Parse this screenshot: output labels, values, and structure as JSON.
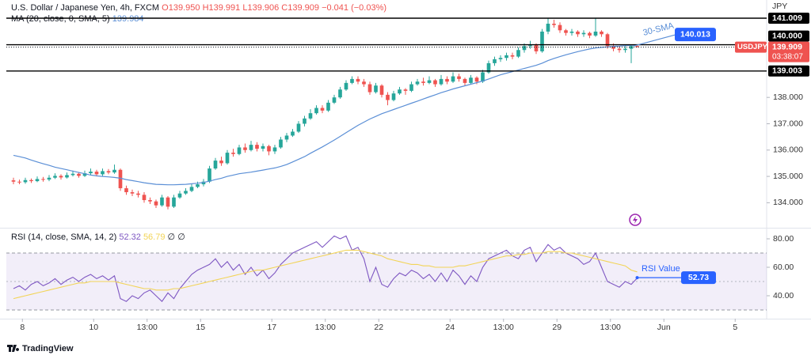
{
  "header": {
    "title": "U.S. Dollar / Japanese Yen, 4h, FXCM",
    "open": "O139.950",
    "high": "H139.991",
    "low": "L139.906",
    "close": "C139.909",
    "change": "−0.041 (−0.03%)",
    "ma_legend": "MA (20, close, 0, SMA, 5)",
    "ma_value": "139.984"
  },
  "chart_data": [
    {
      "type": "candlestick",
      "currency": "JPY",
      "xlim": [
        -0.7,
        127.3
      ],
      "ylim": [
        133.14,
        141.7
      ],
      "yticks": [
        {
          "value": 134,
          "label": "134.000"
        },
        {
          "value": 135,
          "label": "135.000"
        },
        {
          "value": 136,
          "label": "136.000"
        },
        {
          "value": 137,
          "label": "137.000"
        },
        {
          "value": 138,
          "label": "138.000"
        }
      ],
      "up_color": "#26a69a",
      "down_color": "#ef5350",
      "candles": [
        [
          134.85,
          134.95,
          134.7,
          134.8
        ],
        [
          134.8,
          134.88,
          134.7,
          134.78
        ],
        [
          134.78,
          134.95,
          134.72,
          134.86
        ],
        [
          134.86,
          134.92,
          134.75,
          134.82
        ],
        [
          134.82,
          135.0,
          134.78,
          134.9
        ],
        [
          134.9,
          134.98,
          134.8,
          134.88
        ],
        [
          134.88,
          135.05,
          134.82,
          134.95
        ],
        [
          134.95,
          135.12,
          134.9,
          135.02
        ],
        [
          135.02,
          135.08,
          134.88,
          134.96
        ],
        [
          134.96,
          135.15,
          134.92,
          135.05
        ],
        [
          135.05,
          135.22,
          135.0,
          135.1
        ],
        [
          135.1,
          135.15,
          134.95,
          135.02
        ],
        [
          135.02,
          135.22,
          134.98,
          135.12
        ],
        [
          135.12,
          135.3,
          135.05,
          135.18
        ],
        [
          135.18,
          135.25,
          135.0,
          135.08
        ],
        [
          135.08,
          135.3,
          135.02,
          135.2
        ],
        [
          135.2,
          135.28,
          135.08,
          135.15
        ],
        [
          135.15,
          135.45,
          135.1,
          135.25
        ],
        [
          135.25,
          135.3,
          134.45,
          134.55
        ],
        [
          134.55,
          134.65,
          134.3,
          134.4
        ],
        [
          134.4,
          134.5,
          134.25,
          134.35
        ],
        [
          134.35,
          134.45,
          134.2,
          134.3
        ],
        [
          134.3,
          134.4,
          134.0,
          134.1
        ],
        [
          134.1,
          134.2,
          133.95,
          134.05
        ],
        [
          134.05,
          134.12,
          133.8,
          133.9
        ],
        [
          133.9,
          134.3,
          133.85,
          134.2
        ],
        [
          134.2,
          134.25,
          133.75,
          133.85
        ],
        [
          133.85,
          134.3,
          133.8,
          134.2
        ],
        [
          134.2,
          134.45,
          134.15,
          134.35
        ],
        [
          134.35,
          134.55,
          134.3,
          134.45
        ],
        [
          134.45,
          134.7,
          134.4,
          134.6
        ],
        [
          134.6,
          134.8,
          134.55,
          134.7
        ],
        [
          134.7,
          134.9,
          134.62,
          134.8
        ],
        [
          134.8,
          135.4,
          134.75,
          135.3
        ],
        [
          135.3,
          135.7,
          135.25,
          135.6
        ],
        [
          135.6,
          135.75,
          135.4,
          135.5
        ],
        [
          135.5,
          136.0,
          135.45,
          135.9
        ],
        [
          135.9,
          136.05,
          135.75,
          135.85
        ],
        [
          135.85,
          136.2,
          135.8,
          136.1
        ],
        [
          136.1,
          136.25,
          135.9,
          136.0
        ],
        [
          136.0,
          136.35,
          135.95,
          136.2
        ],
        [
          136.2,
          136.3,
          135.95,
          136.05
        ],
        [
          136.05,
          136.25,
          135.95,
          136.15
        ],
        [
          136.15,
          136.2,
          135.8,
          135.95
        ],
        [
          135.95,
          136.2,
          135.85,
          136.1
        ],
        [
          136.1,
          136.5,
          136.05,
          136.4
        ],
        [
          136.4,
          136.65,
          136.3,
          136.55
        ],
        [
          136.55,
          136.8,
          136.5,
          136.7
        ],
        [
          136.7,
          137.1,
          136.65,
          137.0
        ],
        [
          137.0,
          137.3,
          136.9,
          137.2
        ],
        [
          137.2,
          137.55,
          137.15,
          137.4
        ],
        [
          137.4,
          137.7,
          137.35,
          137.6
        ],
        [
          137.6,
          137.7,
          137.4,
          137.5
        ],
        [
          137.5,
          137.9,
          137.45,
          137.8
        ],
        [
          137.8,
          138.1,
          137.75,
          138.0
        ],
        [
          138.0,
          138.4,
          137.95,
          138.3
        ],
        [
          138.3,
          138.65,
          138.25,
          138.55
        ],
        [
          138.55,
          138.8,
          138.5,
          138.7
        ],
        [
          138.7,
          138.8,
          138.5,
          138.6
        ],
        [
          138.6,
          138.7,
          138.4,
          138.5
        ],
        [
          138.5,
          138.6,
          138.1,
          138.2
        ],
        [
          138.2,
          138.55,
          138.15,
          138.45
        ],
        [
          138.45,
          138.5,
          138.0,
          138.1
        ],
        [
          138.1,
          138.2,
          137.7,
          137.9
        ],
        [
          137.9,
          138.25,
          137.85,
          138.15
        ],
        [
          138.15,
          138.4,
          138.1,
          138.3
        ],
        [
          138.3,
          138.35,
          138.1,
          138.25
        ],
        [
          138.25,
          138.6,
          138.2,
          138.5
        ],
        [
          138.5,
          138.7,
          138.45,
          138.6
        ],
        [
          138.6,
          138.75,
          138.45,
          138.55
        ],
        [
          138.55,
          138.8,
          138.5,
          138.65
        ],
        [
          138.65,
          138.7,
          138.4,
          138.5
        ],
        [
          138.5,
          138.85,
          138.45,
          138.7
        ],
        [
          138.7,
          138.8,
          138.5,
          138.6
        ],
        [
          138.6,
          138.95,
          138.55,
          138.8
        ],
        [
          138.8,
          138.9,
          138.6,
          138.7
        ],
        [
          138.7,
          138.75,
          138.45,
          138.55
        ],
        [
          138.55,
          138.85,
          138.5,
          138.75
        ],
        [
          138.75,
          138.8,
          138.5,
          138.6
        ],
        [
          138.6,
          139.05,
          138.55,
          138.95
        ],
        [
          138.95,
          139.4,
          138.9,
          139.3
        ],
        [
          139.3,
          139.55,
          139.2,
          139.45
        ],
        [
          139.45,
          139.6,
          139.35,
          139.5
        ],
        [
          139.5,
          139.7,
          139.4,
          139.6
        ],
        [
          139.6,
          139.7,
          139.45,
          139.55
        ],
        [
          139.55,
          139.9,
          139.5,
          139.8
        ],
        [
          139.8,
          140.05,
          139.7,
          139.95
        ],
        [
          139.95,
          140.15,
          139.85,
          140.0
        ],
        [
          140.0,
          140.05,
          139.65,
          139.75
        ],
        [
          139.75,
          140.6,
          139.7,
          140.5
        ],
        [
          140.5,
          141.0,
          140.4,
          140.8
        ],
        [
          140.8,
          140.95,
          140.65,
          140.75
        ],
        [
          140.75,
          140.85,
          140.45,
          140.55
        ],
        [
          140.55,
          140.6,
          140.35,
          140.45
        ],
        [
          140.45,
          140.6,
          140.35,
          140.5
        ],
        [
          140.5,
          140.55,
          140.3,
          140.4
        ],
        [
          140.4,
          140.55,
          140.3,
          140.45
        ],
        [
          140.45,
          140.5,
          140.25,
          140.35
        ],
        [
          140.35,
          141.0,
          140.3,
          140.5
        ],
        [
          140.5,
          140.55,
          140.3,
          140.4
        ],
        [
          140.4,
          140.45,
          139.85,
          139.95
        ],
        [
          139.95,
          140.05,
          139.75,
          139.85
        ],
        [
          139.85,
          139.95,
          139.7,
          139.8
        ],
        [
          139.8,
          139.95,
          139.7,
          139.85
        ],
        [
          139.85,
          139.98,
          139.3,
          139.95
        ],
        [
          139.95,
          139.991,
          139.906,
          139.909
        ]
      ],
      "series": [
        {
          "name": "MA (20, close, 0, SMA, 5)",
          "color": "#5b8fd6",
          "values": [
            135.8,
            135.75,
            135.7,
            135.62,
            135.55,
            135.48,
            135.42,
            135.35,
            135.3,
            135.25,
            135.2,
            135.15,
            135.1,
            135.05,
            135.02,
            135.0,
            134.98,
            134.96,
            134.93,
            134.88,
            134.84,
            134.8,
            134.76,
            134.73,
            134.7,
            134.69,
            134.68,
            134.68,
            134.69,
            134.7,
            134.72,
            134.74,
            134.77,
            134.82,
            134.88,
            134.93,
            135.0,
            135.05,
            135.1,
            135.13,
            135.16,
            135.2,
            135.24,
            135.28,
            135.32,
            135.38,
            135.45,
            135.55,
            135.65,
            135.75,
            135.88,
            136.0,
            136.12,
            136.25,
            136.38,
            136.52,
            136.66,
            136.8,
            136.94,
            137.06,
            137.18,
            137.28,
            137.38,
            137.46,
            137.54,
            137.62,
            137.7,
            137.78,
            137.86,
            137.94,
            138.02,
            138.1,
            138.18,
            138.25,
            138.32,
            138.38,
            138.44,
            138.5,
            138.56,
            138.62,
            138.7,
            138.78,
            138.86,
            138.92,
            138.98,
            139.04,
            139.1,
            139.16,
            139.22,
            139.3,
            139.4,
            139.48,
            139.55,
            139.62,
            139.68,
            139.74,
            139.79,
            139.84,
            139.88,
            139.9,
            139.92,
            139.94,
            139.95,
            139.97,
            139.98,
            139.984
          ]
        }
      ],
      "levels": [
        141.009,
        {
          "value": 140,
          "label": "140.000"
        },
        139.003
      ],
      "last": {
        "symbol": "USDJPY",
        "value": 139.909,
        "countdown": "03:38:07"
      },
      "annotation": {
        "text": "30-SMA",
        "value": 140.013
      }
    },
    {
      "type": "line",
      "title": "RSI (14, close, SMA, 14, 2)",
      "legend": [
        "52.32",
        "56.79",
        "∅",
        "∅"
      ],
      "xlim": [
        -0.7,
        127.3
      ],
      "ylim": [
        25.56,
        85.56
      ],
      "yticks": [
        {
          "value": 40,
          "label": "40.00"
        },
        {
          "value": 60,
          "label": "60.00"
        },
        {
          "value": 80,
          "label": "80.00"
        }
      ],
      "band": [
        30,
        70
      ],
      "band_color": "#7e57c2",
      "xticks": [
        {
          "value": 2,
          "label": "8"
        },
        {
          "value": 14,
          "label": "10"
        },
        {
          "value": 23,
          "label": "13:00"
        },
        {
          "value": 32,
          "label": "15"
        },
        {
          "value": 44,
          "label": "17"
        },
        {
          "value": 53,
          "label": "13:00"
        },
        {
          "value": 62,
          "label": "22"
        },
        {
          "value": 74,
          "label": "24"
        },
        {
          "value": 83,
          "label": "13:00"
        },
        {
          "value": 92,
          "label": "29"
        },
        {
          "value": 101,
          "label": "13:00"
        },
        {
          "value": 110,
          "label": "Jun"
        },
        {
          "value": 122,
          "label": "5"
        }
      ],
      "series": [
        {
          "color": "#7e57c2",
          "values": [
            45,
            47,
            44,
            48,
            50,
            47,
            49,
            52,
            48,
            51,
            53,
            50,
            53,
            55,
            52,
            54,
            51,
            54,
            38,
            36,
            40,
            38,
            42,
            44,
            40,
            36,
            42,
            38,
            45,
            50,
            55,
            58,
            60,
            62,
            66,
            60,
            64,
            58,
            62,
            55,
            60,
            54,
            58,
            52,
            56,
            62,
            66,
            70,
            72,
            74,
            76,
            78,
            74,
            78,
            82,
            80,
            82,
            72,
            74,
            66,
            50,
            60,
            48,
            46,
            52,
            56,
            54,
            58,
            56,
            52,
            55,
            50,
            56,
            50,
            58,
            54,
            48,
            54,
            50,
            60,
            66,
            68,
            70,
            72,
            68,
            66,
            72,
            74,
            64,
            70,
            76,
            72,
            74,
            70,
            68,
            66,
            62,
            64,
            70,
            60,
            50,
            48,
            46,
            50,
            48,
            52.32
          ]
        },
        {
          "color": "#f2d457",
          "values": [
            38,
            39,
            40,
            41,
            42,
            43,
            44,
            45,
            46,
            47,
            48,
            49,
            49,
            50,
            50,
            50,
            50,
            50,
            49,
            48,
            47,
            46,
            45,
            45,
            44,
            44,
            44,
            45,
            45,
            46,
            47,
            48,
            49,
            50,
            51,
            52,
            53,
            54,
            55,
            56,
            57,
            58,
            58,
            59,
            60,
            61,
            62,
            63,
            64,
            65,
            66,
            67,
            68,
            69,
            70,
            71,
            72,
            72,
            72,
            71,
            70,
            69,
            68,
            66,
            65,
            64,
            63,
            62,
            62,
            61,
            61,
            60,
            60,
            60,
            60,
            61,
            61,
            62,
            63,
            64,
            65,
            66,
            67,
            68,
            68,
            69,
            69,
            70,
            70,
            70,
            71,
            71,
            71,
            70,
            70,
            69,
            68,
            67,
            66,
            65,
            64,
            63,
            62,
            61,
            58,
            56.79
          ]
        }
      ],
      "annotation": {
        "text": "RSI Value",
        "value": 52.73
      }
    }
  ],
  "footer": {
    "brand": "TradingView"
  }
}
